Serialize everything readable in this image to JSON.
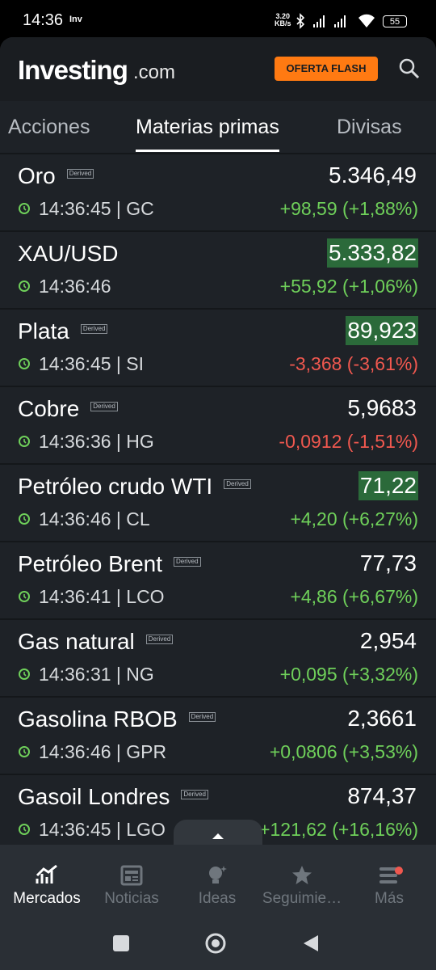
{
  "status_bar": {
    "time": "14:36",
    "carrier": "Inv",
    "speed_value": "3.20",
    "speed_unit": "KB/s",
    "battery": "55"
  },
  "header": {
    "logo": "Investing",
    "logo_suffix": ".com",
    "promo": "OFERTA FLASH"
  },
  "tabs": [
    {
      "label": "Acciones",
      "active": false
    },
    {
      "label": "Materias primas",
      "active": true
    },
    {
      "label": "Divisas",
      "active": false
    }
  ],
  "rows": [
    {
      "name": "Oro",
      "tag": "Derived",
      "price": "5.346,49",
      "meta": "14:36:45 | GC",
      "change": "+98,59 (+1,88%)",
      "trend": "up",
      "highlight": false
    },
    {
      "name": "XAU/USD",
      "tag": null,
      "price": "5.333,82",
      "meta": "14:36:46",
      "change": "+55,92 (+1,06%)",
      "trend": "up",
      "highlight": true
    },
    {
      "name": "Plata",
      "tag": "Derived",
      "price": "89,923",
      "meta": "14:36:45 | SI",
      "change": "-3,368 (-3,61%)",
      "trend": "down",
      "highlight": true
    },
    {
      "name": "Cobre",
      "tag": "Derived",
      "price": "5,9683",
      "meta": "14:36:36 | HG",
      "change": "-0,0912 (-1,51%)",
      "trend": "down",
      "highlight": false
    },
    {
      "name": "Petróleo crudo WTI",
      "tag": "Derived",
      "price": "71,22",
      "meta": "14:36:46 | CL",
      "change": "+4,20 (+6,27%)",
      "trend": "up",
      "highlight": true
    },
    {
      "name": "Petróleo Brent",
      "tag": "Derived",
      "price": "77,73",
      "meta": "14:36:41 | LCO",
      "change": "+4,86 (+6,67%)",
      "trend": "up",
      "highlight": false
    },
    {
      "name": "Gas natural",
      "tag": "Derived",
      "price": "2,954",
      "meta": "14:36:31 | NG",
      "change": "+0,095 (+3,32%)",
      "trend": "up",
      "highlight": false
    },
    {
      "name": "Gasolina RBOB",
      "tag": "Derived",
      "price": "2,3661",
      "meta": "14:36:46 | GPR",
      "change": "+0,0806 (+3,53%)",
      "trend": "up",
      "highlight": false
    },
    {
      "name": "Gasoil Londres",
      "tag": "Derived",
      "price": "874,37",
      "meta": "14:36:45 | LGO",
      "change": "+121,62 (+16,16%)",
      "trend": "up",
      "highlight": false
    }
  ],
  "nav": [
    {
      "label": "Mercados",
      "active": true
    },
    {
      "label": "Noticias",
      "active": false
    },
    {
      "label": "Ideas",
      "active": false
    },
    {
      "label": "Seguimie…",
      "active": false
    },
    {
      "label": "Más",
      "active": false
    }
  ]
}
